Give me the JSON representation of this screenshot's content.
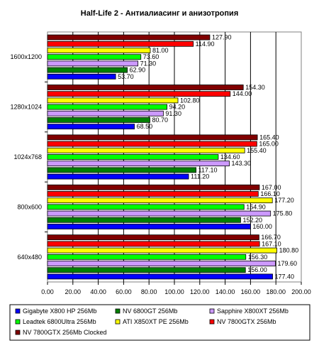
{
  "chart_data": {
    "type": "bar",
    "orientation": "horizontal",
    "title": "Half-Life 2 - Антиалиасинг и анизотропия",
    "xlabel": "",
    "ylabel": "",
    "xlim": [
      0,
      200
    ],
    "x_ticks": [
      "0.00",
      "20.00",
      "40.00",
      "60.00",
      "80.00",
      "100.00",
      "120.00",
      "140.00",
      "160.00",
      "180.00",
      "200.00"
    ],
    "x_tick_values": [
      0,
      20,
      40,
      60,
      80,
      100,
      120,
      140,
      160,
      180,
      200
    ],
    "grid": true,
    "legend_position": "bottom",
    "categories": [
      "1600x1200",
      "1280x1024",
      "1024x768",
      "800x600",
      "640x480"
    ],
    "series": [
      {
        "name": "Gigabyte X800 HP 256Mb",
        "color": "#0000ff",
        "values": [
          53.7,
          68.5,
          111.2,
          160.0,
          177.4
        ],
        "labels": [
          "53.70",
          "68.50",
          "111.20",
          "160.00",
          "177.40"
        ]
      },
      {
        "name": "NV 6800GT 256Mb",
        "color": "#008000",
        "values": [
          62.9,
          80.7,
          117.1,
          152.2,
          156.0
        ],
        "labels": [
          "62.90",
          "80.70",
          "117.10",
          "152.20",
          "156.00"
        ]
      },
      {
        "name": "Sapphire X800XT 256Mb",
        "color": "#cc99ff",
        "values": [
          71.3,
          91.3,
          143.3,
          175.8,
          179.6
        ],
        "labels": [
          "71.30",
          "91.30",
          "143.30",
          "175.80",
          "179.60"
        ]
      },
      {
        "name": "Leadtek 6800Ultra 256Mb",
        "color": "#00ff00",
        "values": [
          73.6,
          94.2,
          134.6,
          154.9,
          156.3
        ],
        "labels": [
          "73.60",
          "94.20",
          "134.60",
          "154.90",
          "156.30"
        ]
      },
      {
        "name": "ATI X850XT PE 256Mb",
        "color": "#ffff00",
        "values": [
          81.0,
          102.8,
          155.4,
          177.2,
          180.8
        ],
        "labels": [
          "81.00",
          "102.80",
          "155.40",
          "177.20",
          "180.80"
        ]
      },
      {
        "name": "NV 7800GTX 256Mb",
        "color": "#ff0000",
        "values": [
          114.9,
          144.0,
          165.0,
          166.1,
          167.1
        ],
        "labels": [
          "114.90",
          "144.00",
          "165.00",
          "166.10",
          "167.10"
        ]
      },
      {
        "name": "NV 7800GTX 256Mb Clocked",
        "color": "#800000",
        "values": [
          127.9,
          154.3,
          165.4,
          167.0,
          166.7
        ],
        "labels": [
          "127.90",
          "154.30",
          "165.40",
          "167.00",
          "166.70"
        ]
      }
    ]
  }
}
